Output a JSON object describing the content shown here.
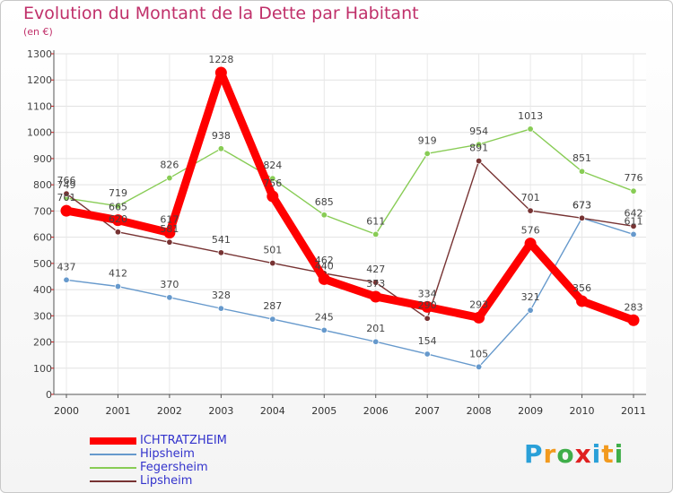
{
  "header": {
    "title": "Evolution du Montant de la Dette par Habitant",
    "subtitle": "(en €)"
  },
  "logo": {
    "text": "Proxiti",
    "letters": [
      "P",
      "r",
      "o",
      "x",
      "i",
      "t",
      "i"
    ],
    "colors": [
      "#2aa0d8",
      "#f29a1e",
      "#3fae49",
      "#e02020",
      "#2aa0d8",
      "#f29a1e",
      "#3fae49"
    ]
  },
  "chart_data": {
    "type": "line",
    "title": "Evolution du Montant de la Dette par Habitant",
    "subtitle": "(en €)",
    "x": [
      "2000",
      "2001",
      "2002",
      "2003",
      "2004",
      "2005",
      "2006",
      "2007",
      "2008",
      "2009",
      "2010",
      "2011"
    ],
    "ylim": [
      0,
      1300
    ],
    "yticks": [
      0,
      100,
      200,
      300,
      400,
      500,
      600,
      700,
      800,
      900,
      1000,
      1100,
      1200,
      1300
    ],
    "grid": true,
    "legend_position": "bottom-left",
    "series": [
      {
        "name": "ICHTRATZHEIM",
        "color": "#ff0000",
        "values": [
          701,
          665,
          617,
          1228,
          756,
          440,
          373,
          334,
          293,
          576,
          356,
          283
        ]
      },
      {
        "name": "Hipsheim",
        "color": "#6699cc",
        "values": [
          437,
          412,
          370,
          328,
          287,
          245,
          201,
          154,
          105,
          321,
          673,
          611
        ]
      },
      {
        "name": "Fegersheim",
        "color": "#88cc55",
        "values": [
          749,
          719,
          826,
          938,
          824,
          685,
          611,
          919,
          954,
          1013,
          851,
          776
        ]
      },
      {
        "name": "Lipsheim",
        "color": "#773333",
        "values": [
          766,
          620,
          581,
          541,
          501,
          462,
          427,
          290,
          891,
          701,
          673,
          642
        ]
      }
    ]
  }
}
